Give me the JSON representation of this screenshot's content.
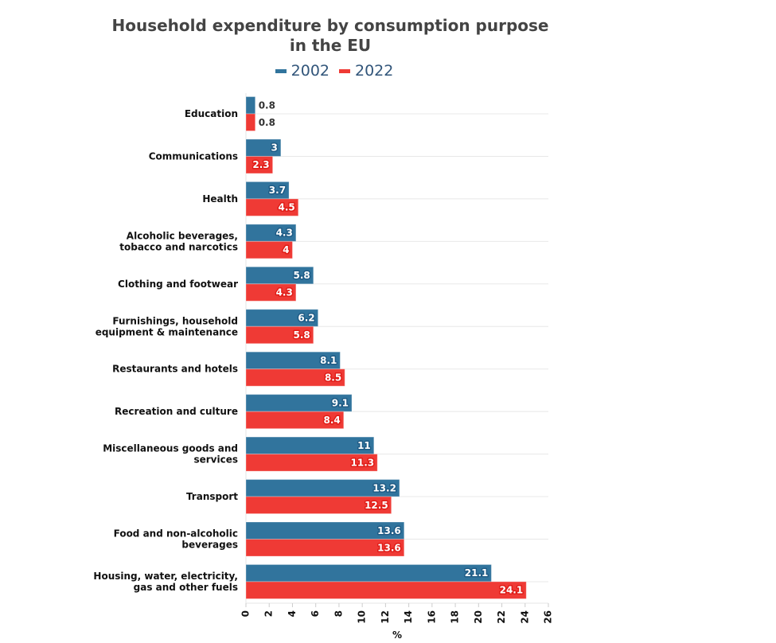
{
  "chart_data": {
    "type": "bar",
    "orientation": "horizontal",
    "title": "Household expenditure by consumption purpose in the EU",
    "xlabel": "%",
    "ylabel": "",
    "xlim": [
      0,
      26
    ],
    "xticks": [
      0,
      2,
      4,
      6,
      8,
      10,
      12,
      14,
      16,
      18,
      20,
      22,
      24,
      26
    ],
    "legend_position": "top",
    "categories": [
      [
        "Education"
      ],
      [
        "Communications"
      ],
      [
        "Health"
      ],
      [
        "Alcoholic beverages,",
        "tobacco and narcotics"
      ],
      [
        "Clothing and footwear"
      ],
      [
        "Furnishings, household",
        "equipment & maintenance"
      ],
      [
        "Restaurants and hotels"
      ],
      [
        "Recreation and culture"
      ],
      [
        "Miscellaneous goods and",
        "services"
      ],
      [
        "Transport"
      ],
      [
        "Food and non-alcoholic",
        "beverages"
      ],
      [
        "Housing, water, electricity,",
        "gas and other fuels"
      ]
    ],
    "series": [
      {
        "name": "2002",
        "color": "#31749d",
        "halo": "#1f5b85",
        "values": [
          0.8,
          3,
          3.7,
          4.3,
          5.8,
          6.2,
          8.1,
          9.1,
          11,
          13.2,
          13.6,
          21.1
        ]
      },
      {
        "name": "2022",
        "color": "#ef3a35",
        "halo": "#e01c17",
        "values": [
          0.8,
          2.3,
          4.5,
          4,
          4.3,
          5.8,
          8.5,
          8.4,
          11.3,
          12.5,
          13.6,
          24.1
        ]
      }
    ]
  }
}
